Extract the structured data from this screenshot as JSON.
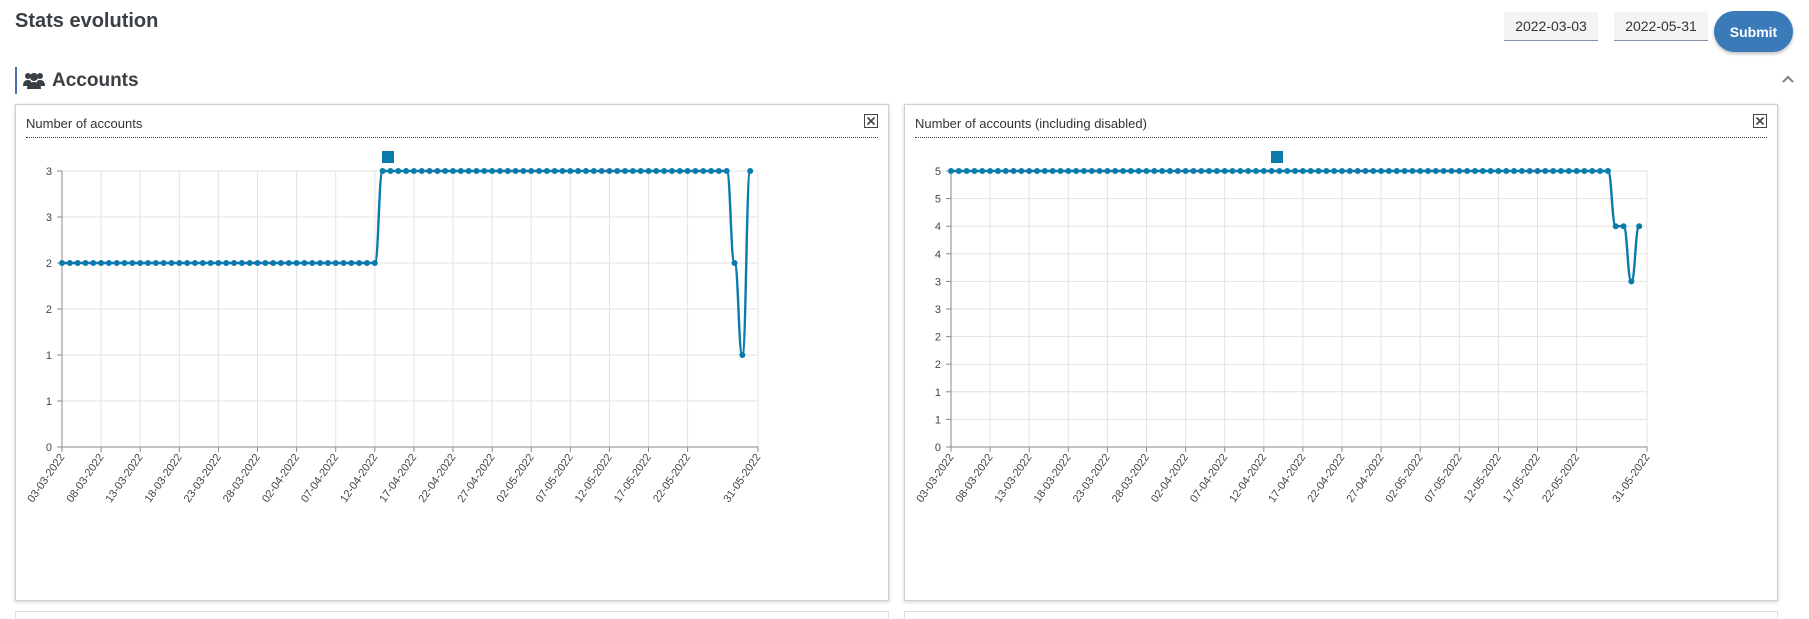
{
  "page": {
    "title": "Stats evolution"
  },
  "filters": {
    "start_date": "2022-03-03",
    "end_date": "2022-05-31",
    "submit_label": "Submit"
  },
  "section": {
    "title": "Accounts",
    "icon": "users-icon",
    "collapse_icon": "chevron-up-icon"
  },
  "colors": {
    "series": "#0a7bab",
    "accent": "#3b7ab8"
  },
  "chart_data": [
    {
      "type": "line",
      "title": "Number of accounts",
      "legend": "top-center",
      "grid": true,
      "ylim": [
        0,
        3
      ],
      "y_ticks": [
        0,
        0.5,
        1,
        1.5,
        2,
        2.5,
        3
      ],
      "y_tick_labels": [
        "0",
        "1",
        "1",
        "2",
        "2",
        "3",
        "3"
      ],
      "x_tick_labels": [
        "03-03-2022",
        "08-03-2022",
        "13-03-2022",
        "18-03-2022",
        "23-03-2022",
        "28-03-2022",
        "02-04-2022",
        "07-04-2022",
        "12-04-2022",
        "17-04-2022",
        "22-04-2022",
        "27-04-2022",
        "02-05-2022",
        "07-05-2022",
        "12-05-2022",
        "17-05-2022",
        "22-05-2022",
        "31-05-2022"
      ],
      "x_start": "2022-03-03",
      "x_end": "2022-05-31",
      "series": [
        {
          "values": [
            2,
            2,
            2,
            2,
            2,
            2,
            2,
            2,
            2,
            2,
            2,
            2,
            2,
            2,
            2,
            2,
            2,
            2,
            2,
            2,
            2,
            2,
            2,
            2,
            2,
            2,
            2,
            2,
            2,
            2,
            2,
            2,
            2,
            2,
            2,
            2,
            2,
            2,
            2,
            2,
            2,
            3,
            3,
            3,
            3,
            3,
            3,
            3,
            3,
            3,
            3,
            3,
            3,
            3,
            3,
            3,
            3,
            3,
            3,
            3,
            3,
            3,
            3,
            3,
            3,
            3,
            3,
            3,
            3,
            3,
            3,
            3,
            3,
            3,
            3,
            3,
            3,
            3,
            3,
            3,
            3,
            3,
            3,
            3,
            3,
            3,
            2,
            1,
            3
          ]
        }
      ]
    },
    {
      "type": "line",
      "title": "Number of accounts (including disabled)",
      "legend": "top-center",
      "grid": true,
      "ylim": [
        0,
        5
      ],
      "y_ticks": [
        0,
        0.5,
        1,
        1.5,
        2,
        2.5,
        3,
        3.5,
        4,
        4.5,
        5
      ],
      "y_tick_labels": [
        "0",
        "1",
        "1",
        "2",
        "2",
        "3",
        "3",
        "4",
        "4",
        "5",
        "5"
      ],
      "x_tick_labels": [
        "03-03-2022",
        "08-03-2022",
        "13-03-2022",
        "18-03-2022",
        "23-03-2022",
        "28-03-2022",
        "02-04-2022",
        "07-04-2022",
        "12-04-2022",
        "17-04-2022",
        "22-04-2022",
        "27-04-2022",
        "02-05-2022",
        "07-05-2022",
        "12-05-2022",
        "17-05-2022",
        "22-05-2022",
        "31-05-2022"
      ],
      "x_start": "2022-03-03",
      "x_end": "2022-05-31",
      "series": [
        {
          "values": [
            5,
            5,
            5,
            5,
            5,
            5,
            5,
            5,
            5,
            5,
            5,
            5,
            5,
            5,
            5,
            5,
            5,
            5,
            5,
            5,
            5,
            5,
            5,
            5,
            5,
            5,
            5,
            5,
            5,
            5,
            5,
            5,
            5,
            5,
            5,
            5,
            5,
            5,
            5,
            5,
            5,
            5,
            5,
            5,
            5,
            5,
            5,
            5,
            5,
            5,
            5,
            5,
            5,
            5,
            5,
            5,
            5,
            5,
            5,
            5,
            5,
            5,
            5,
            5,
            5,
            5,
            5,
            5,
            5,
            5,
            5,
            5,
            5,
            5,
            5,
            5,
            5,
            5,
            5,
            5,
            5,
            5,
            5,
            5,
            5,
            4,
            4,
            3,
            4
          ]
        }
      ]
    }
  ]
}
